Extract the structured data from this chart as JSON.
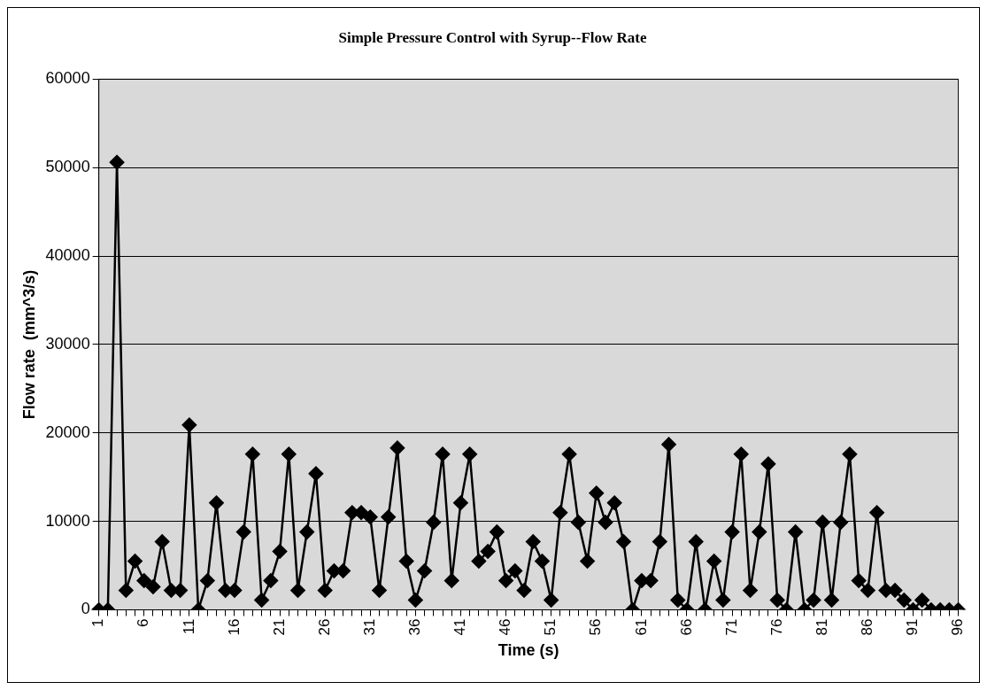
{
  "chart_data": {
    "type": "line",
    "title": "Simple Pressure Control with Syrup--Flow Rate",
    "xlabel": "Time (s)",
    "ylabel": "Flow rate  (mm^3/s)",
    "categories": [
      "1",
      null,
      null,
      null,
      null,
      "6",
      null,
      null,
      null,
      null,
      "11",
      null,
      null,
      null,
      null,
      "16",
      null,
      null,
      null,
      null,
      "21",
      null,
      null,
      null,
      null,
      "26",
      null,
      null,
      null,
      null,
      "31",
      null,
      null,
      null,
      null,
      "36",
      null,
      null,
      null,
      null,
      "41",
      null,
      null,
      null,
      null,
      "46",
      null,
      null,
      null,
      null,
      "51",
      null,
      null,
      null,
      null,
      "56",
      null,
      null,
      null,
      null,
      "61",
      null,
      null,
      null,
      null,
      "66",
      null,
      null,
      null,
      null,
      "71",
      null,
      null,
      null,
      null,
      "76",
      null,
      null,
      null,
      null,
      "81",
      null,
      null,
      null,
      null,
      "86",
      null,
      null,
      null,
      null,
      "91",
      null,
      null,
      null,
      null,
      "96"
    ],
    "series": [
      {
        "color": "#000000",
        "values": [
          0,
          0,
          50600,
          2200,
          5500,
          3300,
          2600,
          7700,
          2200,
          2200,
          20900,
          0,
          3300,
          12100,
          2200,
          2200,
          8800,
          17600,
          1100,
          3300,
          6600,
          17600,
          2200,
          8800,
          15400,
          2200,
          4400,
          4400,
          11000,
          11000,
          10500,
          2200,
          10500,
          18300,
          5500,
          1100,
          4400,
          9900,
          17600,
          3300,
          12100,
          17600,
          5500,
          6600,
          8800,
          3300,
          4400,
          2200,
          7700,
          5500,
          1100,
          11000,
          17600,
          9900,
          5500,
          13200,
          9900,
          12100,
          7700,
          0,
          3300,
          3300,
          7700,
          18700,
          1100,
          0,
          7700,
          0,
          5500,
          1100,
          8800,
          17600,
          2200,
          8800,
          16500,
          1100,
          0,
          8800,
          0,
          1100,
          9900,
          1100,
          9900,
          17600,
          3300,
          2200,
          11000,
          2200,
          2200,
          1100,
          0,
          1100,
          0,
          0,
          0,
          0
        ]
      }
    ],
    "ylim": [
      0,
      60000
    ],
    "yticks": [
      0,
      10000,
      20000,
      30000,
      40000,
      50000,
      60000
    ],
    "grid": "y",
    "legend": false,
    "marker": "diamond",
    "line_style": "solid"
  }
}
